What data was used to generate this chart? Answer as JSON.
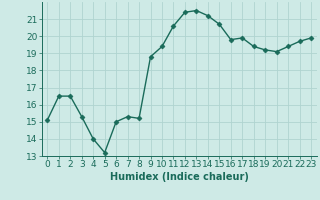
{
  "x": [
    0,
    1,
    2,
    3,
    4,
    5,
    6,
    7,
    8,
    9,
    10,
    11,
    12,
    13,
    14,
    15,
    16,
    17,
    18,
    19,
    20,
    21,
    22,
    23
  ],
  "y": [
    15.1,
    16.5,
    16.5,
    15.3,
    14.0,
    13.2,
    15.0,
    15.3,
    15.2,
    18.8,
    19.4,
    20.6,
    21.4,
    21.5,
    21.2,
    20.7,
    19.8,
    19.9,
    19.4,
    19.2,
    19.1,
    19.4,
    19.7,
    19.9
  ],
  "line_color": "#1a6b5a",
  "marker": "D",
  "markersize": 2.5,
  "linewidth": 1.0,
  "background_color": "#ceeae6",
  "grid_color": "#b0d4d0",
  "xlabel": "Humidex (Indice chaleur)",
  "ylim": [
    13,
    22
  ],
  "xlim": [
    -0.5,
    23.5
  ],
  "yticks": [
    13,
    14,
    15,
    16,
    17,
    18,
    19,
    20,
    21
  ],
  "xticks": [
    0,
    1,
    2,
    3,
    4,
    5,
    6,
    7,
    8,
    9,
    10,
    11,
    12,
    13,
    14,
    15,
    16,
    17,
    18,
    19,
    20,
    21,
    22,
    23
  ],
  "tick_color": "#1a6b5a",
  "label_color": "#1a6b5a",
  "xlabel_fontsize": 7,
  "tick_fontsize": 6.5
}
